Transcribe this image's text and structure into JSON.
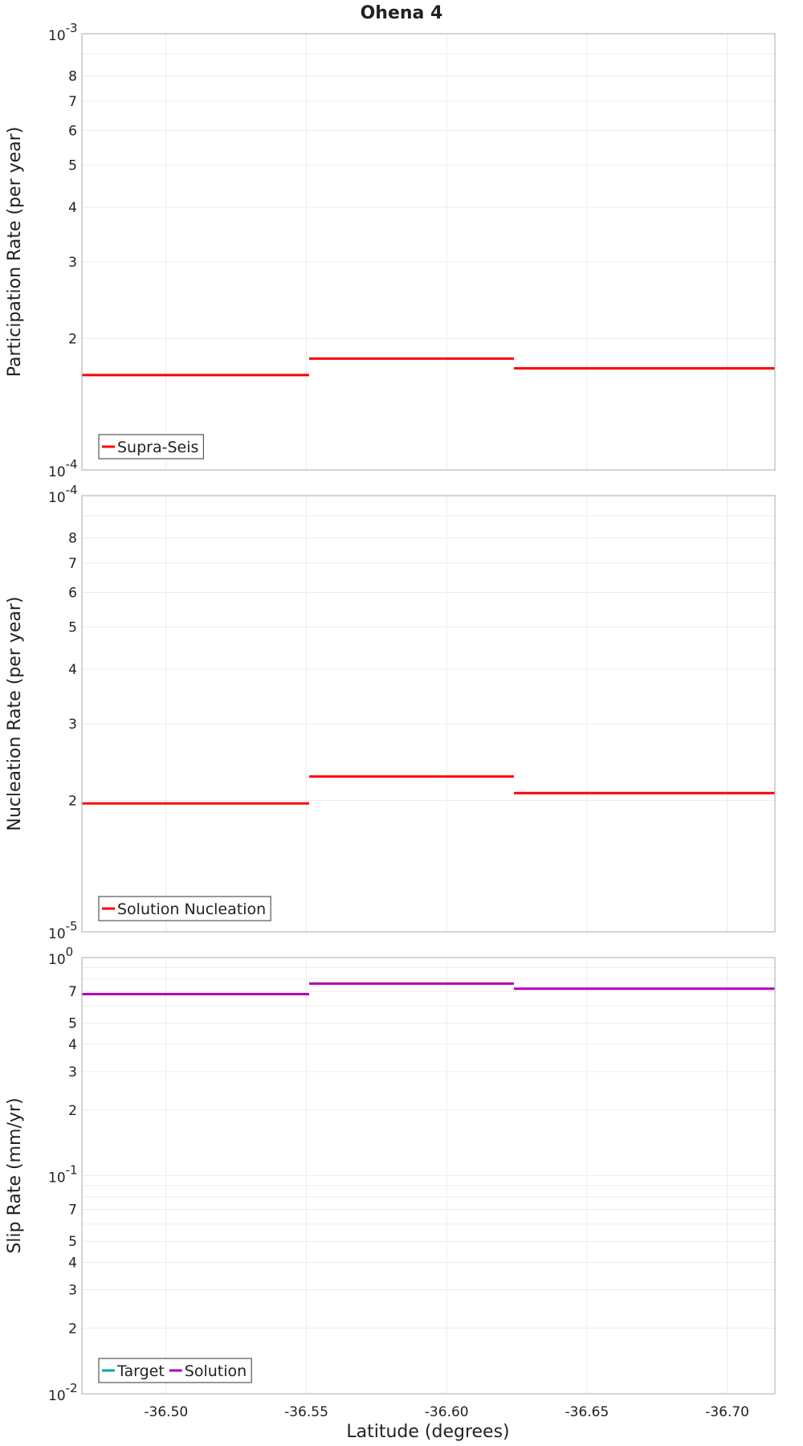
{
  "title": "Ohena 4",
  "chart_data": [
    {
      "type": "line",
      "ylabel": "Participation Rate (per year)",
      "yscale": "log",
      "ylim": [
        0.0001,
        0.001
      ],
      "major_ticks": [
        {
          "value": 0.0001,
          "mantissa": "10",
          "exponent": "-4"
        },
        {
          "value": 0.001,
          "mantissa": "10",
          "exponent": "-3"
        }
      ],
      "minor_ticks": [
        {
          "value": 0.0002,
          "label": "2"
        },
        {
          "value": 0.0003,
          "label": "3"
        },
        {
          "value": 0.0004,
          "label": "4"
        },
        {
          "value": 0.0005,
          "label": "5"
        },
        {
          "value": 0.0006,
          "label": "6"
        },
        {
          "value": 0.0007,
          "label": "7"
        },
        {
          "value": 0.0008,
          "label": "8"
        }
      ],
      "legend_position": "bottom-left",
      "series": [
        {
          "name": "Supra-Seis",
          "color": "#ff0000",
          "segments": [
            [
              -36.47,
              -36.551,
              0.000165
            ],
            [
              -36.551,
              -36.624,
              0.00018
            ],
            [
              -36.624,
              -36.717,
              0.000171
            ]
          ]
        }
      ]
    },
    {
      "type": "line",
      "ylabel": "Nucleation Rate (per year)",
      "yscale": "log",
      "ylim": [
        1e-05,
        0.0001
      ],
      "major_ticks": [
        {
          "value": 1e-05,
          "mantissa": "10",
          "exponent": "-5"
        },
        {
          "value": 0.0001,
          "mantissa": "10",
          "exponent": "-4"
        }
      ],
      "minor_ticks": [
        {
          "value": 2e-05,
          "label": "2"
        },
        {
          "value": 3e-05,
          "label": "3"
        },
        {
          "value": 4e-05,
          "label": "4"
        },
        {
          "value": 5e-05,
          "label": "5"
        },
        {
          "value": 6e-05,
          "label": "6"
        },
        {
          "value": 7e-05,
          "label": "7"
        },
        {
          "value": 8e-05,
          "label": "8"
        }
      ],
      "legend_position": "bottom-left",
      "series": [
        {
          "name": "Solution Nucleation",
          "color": "#ff0000",
          "segments": [
            [
              -36.47,
              -36.551,
              1.97e-05
            ],
            [
              -36.551,
              -36.624,
              2.27e-05
            ],
            [
              -36.624,
              -36.717,
              2.08e-05
            ]
          ]
        }
      ]
    },
    {
      "type": "line",
      "ylabel": "Slip Rate (mm/yr)",
      "yscale": "log",
      "ylim": [
        0.01,
        1
      ],
      "major_ticks": [
        {
          "value": 0.01,
          "mantissa": "10",
          "exponent": "-2"
        },
        {
          "value": 0.1,
          "mantissa": "10",
          "exponent": "-1"
        },
        {
          "value": 1,
          "mantissa": "10",
          "exponent": "0"
        }
      ],
      "minor_ticks": [
        {
          "value": 0.02,
          "label": "2"
        },
        {
          "value": 0.03,
          "label": "3"
        },
        {
          "value": 0.04,
          "label": "4"
        },
        {
          "value": 0.05,
          "label": "5"
        },
        {
          "value": 0.07,
          "label": "7"
        },
        {
          "value": 0.2,
          "label": "2"
        },
        {
          "value": 0.3,
          "label": "3"
        },
        {
          "value": 0.4,
          "label": "4"
        },
        {
          "value": 0.5,
          "label": "5"
        },
        {
          "value": 0.7,
          "label": "7"
        }
      ],
      "legend_position": "bottom-left",
      "series": [
        {
          "name": "Target",
          "color": "#00a8a8",
          "segments": []
        },
        {
          "name": "Solution",
          "color": "#b400b4",
          "segments": [
            [
              -36.47,
              -36.551,
              0.68
            ],
            [
              -36.551,
              -36.624,
              0.76
            ],
            [
              -36.624,
              -36.717,
              0.72
            ]
          ]
        }
      ]
    }
  ],
  "x_axis": {
    "xlabel": "Latitude (degrees)",
    "xlim": [
      -36.47,
      -36.717
    ],
    "ticks": [
      {
        "value": -36.5,
        "label": "-36.50"
      },
      {
        "value": -36.55,
        "label": "-36.55"
      },
      {
        "value": -36.6,
        "label": "-36.60"
      },
      {
        "value": -36.65,
        "label": "-36.65"
      },
      {
        "value": -36.7,
        "label": "-36.70"
      }
    ]
  }
}
